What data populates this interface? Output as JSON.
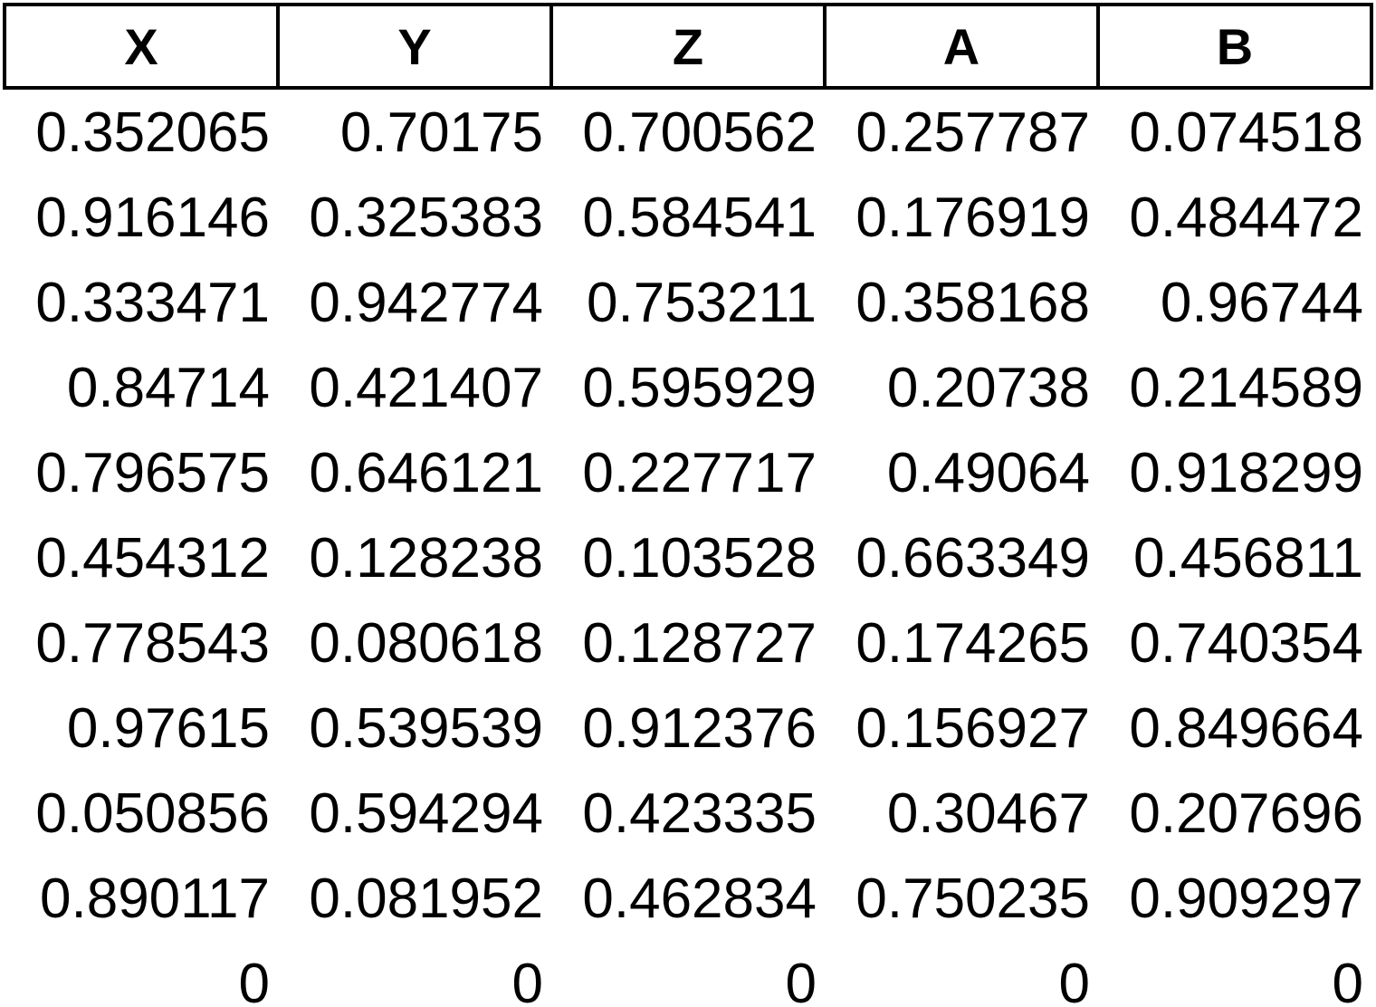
{
  "table": {
    "header": [
      "X",
      "Y",
      "Z",
      "A",
      "B"
    ],
    "rows": [
      [
        0.352065,
        0.70175,
        0.700562,
        0.257787,
        0.074518
      ],
      [
        0.916146,
        0.325383,
        0.584541,
        0.176919,
        0.484472
      ],
      [
        0.333471,
        0.942774,
        0.753211,
        0.358168,
        0.96744
      ],
      [
        0.84714,
        0.421407,
        0.595929,
        0.20738,
        0.214589
      ],
      [
        0.796575,
        0.646121,
        0.227717,
        0.49064,
        0.918299
      ],
      [
        0.454312,
        0.128238,
        0.103528,
        0.663349,
        0.456811
      ],
      [
        0.778543,
        0.080618,
        0.128727,
        0.174265,
        0.740354
      ],
      [
        0.97615,
        0.539539,
        0.912376,
        0.156927,
        0.849664
      ],
      [
        0.050856,
        0.594294,
        0.423335,
        0.30467,
        0.207696
      ],
      [
        0.890117,
        0.081952,
        0.462834,
        0.750235,
        0.909297
      ],
      [
        0,
        0,
        0,
        0,
        0
      ]
    ]
  }
}
